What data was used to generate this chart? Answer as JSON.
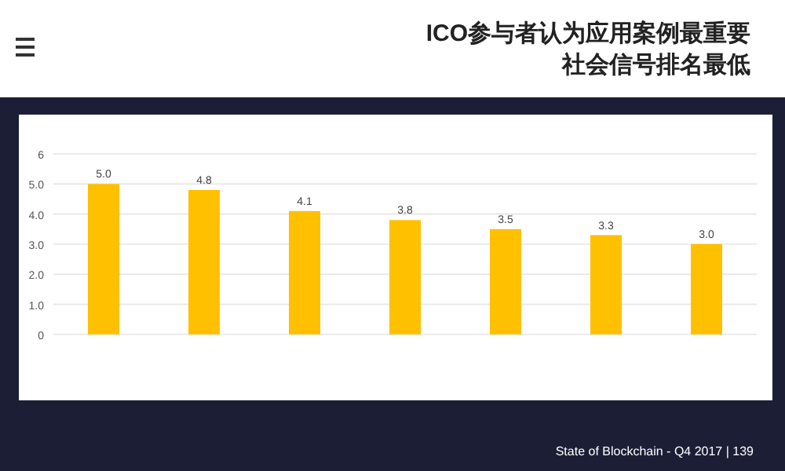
{
  "chart_data": {
    "type": "bar",
    "title": "ICO参与者认为应用案例最重要",
    "subtitle": "社会信号排名最低",
    "categories": [
      null,
      null,
      null,
      null,
      null,
      null,
      null
    ],
    "values": [
      5.0,
      4.8,
      4.1,
      3.8,
      3.5,
      3.3,
      3.0
    ],
    "value_labels": [
      "5.0",
      "4.8",
      "4.1",
      "3.8",
      "3.5",
      "3.3",
      "3.0"
    ],
    "color": "#ffc000",
    "ylim": [
      0,
      6
    ],
    "yticks": [
      {
        "value": 0,
        "label": "0"
      },
      {
        "value": 1,
        "label": "1.0"
      },
      {
        "value": 2,
        "label": "2.0"
      },
      {
        "value": 3,
        "label": "3.0"
      },
      {
        "value": 4,
        "label": "4.0"
      },
      {
        "value": 5,
        "label": "5.0"
      },
      {
        "value": 6,
        "label": "6"
      }
    ],
    "grid": "y",
    "annotations": [
      "State of Blockchain - Q4 2017  |  139"
    ]
  }
}
